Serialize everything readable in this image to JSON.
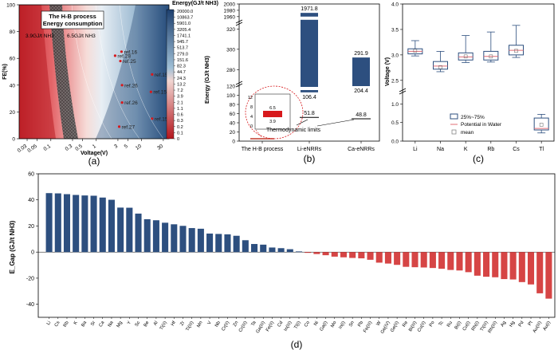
{
  "chart_data": [
    {
      "panel": "a",
      "type": "heatmap",
      "caption": "(a)",
      "xlabel": "Voltage(V)",
      "ylabel": "FE(%)",
      "x_ticks": [
        "0.03",
        "0.05",
        "0.1",
        "0.3",
        "0.5",
        "1",
        "3",
        "5",
        "10",
        "30"
      ],
      "y_ticks": [
        "0",
        "20",
        "40",
        "60",
        "80",
        "100"
      ],
      "scale": "log-x",
      "colorbar_title": "Energy(GJ/t NH3)",
      "colorbar_labels": [
        "20000.0",
        "10863.7",
        "5901.0",
        "3205.4",
        "1741.1",
        "945.7",
        "513.7",
        "279.0",
        "151.6",
        "82.3",
        "44.7",
        "24.3",
        "13.2",
        "7.2",
        "3.9",
        "2.1",
        "1.1",
        "0.6",
        "0.3",
        "0.2",
        "0.1",
        "0"
      ],
      "callout_title": [
        "The H-B process",
        "Energy consumption"
      ],
      "hb_labels": [
        "3.9GJ/t NH3",
        "6.5GJ/t NH3"
      ],
      "refs": [
        {
          "label": "ref.16",
          "v": 3.6,
          "fe": 65
        },
        {
          "label": "ref.28",
          "v": 2.6,
          "fe": 62
        },
        {
          "label": "ref.25",
          "v": 3.4,
          "fe": 58
        },
        {
          "label": "ref.15",
          "v": 17,
          "fe": 48
        },
        {
          "label": "ref.26",
          "v": 3.7,
          "fe": 40
        },
        {
          "label": "ref.15",
          "v": 16,
          "fe": 35
        },
        {
          "label": "ref.26",
          "v": 3.7,
          "fe": 27
        },
        {
          "label": "ref.15",
          "v": 17,
          "fe": 15
        },
        {
          "label": "ref.27",
          "v": 3.2,
          "fe": 9
        }
      ]
    },
    {
      "panel": "b",
      "type": "bar",
      "caption": "(b)",
      "ylabel": "Energy (GJ/t NH3)",
      "categories": [
        "The H-B process",
        "Li-eNRRs",
        "Ca-eNRRs"
      ],
      "ranges": [
        [
          3.9,
          6.5
        ],
        [
          106.4,
          1971.8
        ],
        [
          204.4,
          291.9
        ]
      ],
      "range_labels": [
        [
          "",
          ""
        ],
        [
          "106.4",
          "1971.8"
        ],
        [
          "204.4",
          "291.9"
        ]
      ],
      "thermo_limits": [
        51.8,
        48.8
      ],
      "thermo_labels": [
        "51.8",
        "48.8"
      ],
      "thermo_text": "Thermodynamic limits",
      "y_ticks": [
        "0",
        "20",
        "40",
        "60",
        "80",
        "100",
        "120",
        "280",
        "300",
        "320",
        "1960",
        "1980",
        "2000"
      ],
      "inset_ticks": [
        "12",
        "8",
        "4",
        "0"
      ],
      "inset_labels": [
        "6.5",
        "3.9"
      ]
    },
    {
      "panel": "c",
      "type": "box",
      "caption": "(c)",
      "ylabel": "Voltage (V)",
      "categories": [
        "Li",
        "Na",
        "K",
        "Rb",
        "Cs",
        "Tl"
      ],
      "boxes": [
        {
          "min": 2.98,
          "q1": 3.02,
          "median": 3.07,
          "q3": 3.12,
          "max": 3.28,
          "mean": 3.08
        },
        {
          "min": 2.67,
          "q1": 2.72,
          "median": 2.78,
          "q3": 2.87,
          "max": 3.07,
          "mean": 2.76
        },
        {
          "min": 2.85,
          "q1": 2.9,
          "median": 2.96,
          "q3": 3.04,
          "max": 3.38,
          "mean": 2.97
        },
        {
          "min": 2.86,
          "q1": 2.9,
          "median": 2.97,
          "q3": 3.07,
          "max": 3.45,
          "mean": 2.97
        },
        {
          "min": 2.95,
          "q1": 3.0,
          "median": 3.09,
          "q3": 3.19,
          "max": 3.58,
          "mean": 3.08
        },
        {
          "min": 0.22,
          "q1": 0.3,
          "median": 0.34,
          "q3": 0.62,
          "max": 0.72,
          "mean": 0.44
        }
      ],
      "y_ticks": [
        "0.0",
        "0.5",
        "1.0",
        "2.5",
        "3.0",
        "3.5",
        "4.0"
      ],
      "legend": [
        "25%~75%",
        "Potential in Water",
        "mean"
      ]
    },
    {
      "panel": "d",
      "type": "bar",
      "caption": "(d)",
      "ylabel": "E_Gap (GJ/t NH3)",
      "ylim": [
        -50,
        60
      ],
      "y_ticks": [
        "-40",
        "-20",
        "0",
        "20",
        "40",
        "60"
      ],
      "categories": [
        "Li",
        "Cs",
        "Rb",
        "K",
        "Ba",
        "Sr",
        "Ca",
        "Na",
        "Mg",
        "Y",
        "Sc",
        "Be",
        "Al",
        "Ti(II)",
        "Hf",
        "Zr",
        "Ti(III)",
        "Mn",
        "V",
        "Nb",
        "Cr(II)",
        "Zn",
        "Cr(III)",
        "Ta",
        "Ga(III)",
        "Fe(II)",
        "Cd",
        "In(III)",
        "Tl(I)",
        "Co",
        "Ni",
        "Ga(I)",
        "Mo",
        "In(I)",
        "Sn",
        "Pb",
        "Fe(III)",
        "W",
        "Ge(IV)",
        "Ge(II)",
        "Re",
        "Bi(III)",
        "Cu(II)",
        "Po",
        "Tc",
        "Ru",
        "Bi(I)",
        "Cu(I)",
        "Rh(I)",
        "Tl(III)",
        "Rh(III)",
        "Ag",
        "Hg",
        "Pd",
        "Pt",
        "Au(III)",
        "Au(I)"
      ],
      "values": [
        45.2,
        45.0,
        44.4,
        43.8,
        43.4,
        43.2,
        41.8,
        40.1,
        34.1,
        34.0,
        29.5,
        25.2,
        24.4,
        22.5,
        21.3,
        20.1,
        18.4,
        17.9,
        14.2,
        13.9,
        13.6,
        12.5,
        9.1,
        6.2,
        5.7,
        3.5,
        3.0,
        2.2,
        0.5,
        -0.6,
        -1.5,
        -2.4,
        -3.5,
        -4.0,
        -4.5,
        -4.8,
        -5.9,
        -8.1,
        -8.8,
        -9.8,
        -11.3,
        -11.6,
        -11.8,
        -12.2,
        -12.8,
        -13.7,
        -14.1,
        -15.4,
        -18.1,
        -18.9,
        -19.3,
        -20.7,
        -21.0,
        -23.0,
        -24.8,
        -31.6,
        -35.7
      ]
    }
  ]
}
